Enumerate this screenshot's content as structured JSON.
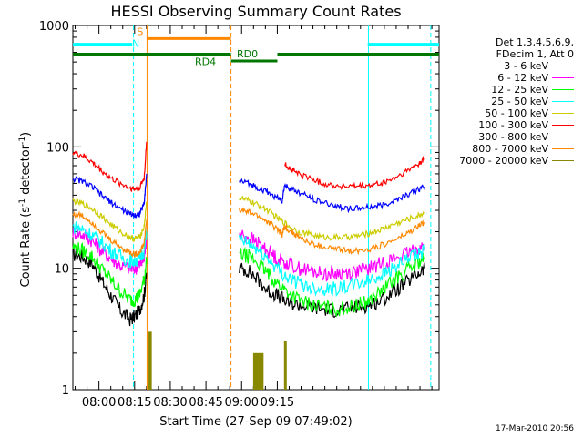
{
  "chart_data": {
    "type": "line",
    "title": "HESSI Observing Summary Count Rates",
    "xlabel": "Start Time (27-Sep-09 07:49:02)",
    "ylabel_main": "Count Rate (s",
    "ylabel_sup1": "-1",
    "ylabel_mid": " detector",
    "ylabel_sup2": "-1",
    "ylabel_end": ")",
    "x_unit": "minutes after 07:49:02",
    "xlim": [
      0,
      154
    ],
    "ylim": [
      1,
      1000
    ],
    "yscale": "log",
    "x_ticks": [
      {
        "at": 10.97,
        "label": "08:00"
      },
      {
        "at": 25.97,
        "label": "08:15"
      },
      {
        "at": 40.97,
        "label": "08:30"
      },
      {
        "at": 55.97,
        "label": "08:45"
      },
      {
        "at": 70.97,
        "label": "09:00"
      },
      {
        "at": 85.97,
        "label": "09:15"
      }
    ],
    "y_ticks": [
      {
        "at": 1,
        "label": "1"
      },
      {
        "at": 10,
        "label": "10"
      },
      {
        "at": 100,
        "label": "100"
      },
      {
        "at": 1000,
        "label": "1000"
      }
    ],
    "legend_placement": "right",
    "legend_header": [
      "Det 1,3,4,5,6,9,",
      "FDecim 1, Att 0"
    ],
    "series": [
      {
        "name": "3 - 6 keV",
        "color": "#000000",
        "segment1": {
          "x": [
            0,
            4,
            8,
            12,
            16,
            20,
            24,
            26,
            28,
            30,
            31
          ],
          "y": [
            13,
            12.5,
            11,
            8,
            6,
            4.5,
            3.8,
            4,
            4.5,
            6,
            9
          ]
        },
        "segment2": {
          "x": [
            70,
            74,
            78,
            82,
            86,
            90,
            95,
            100,
            105,
            110,
            115,
            120,
            125,
            130,
            135,
            140,
            145,
            148
          ],
          "y": [
            10,
            9.5,
            8,
            6.5,
            6,
            5.2,
            5,
            4.8,
            4.6,
            4.5,
            4.6,
            4.8,
            5,
            5.5,
            6.5,
            7.5,
            9,
            10
          ]
        }
      },
      {
        "name": "6 - 12 keV",
        "color": "#ff00ff",
        "segment1": {
          "x": [
            0,
            4,
            8,
            12,
            16,
            20,
            24,
            26,
            28,
            30,
            31
          ],
          "y": [
            20,
            19,
            17,
            14,
            12,
            10.5,
            10,
            10,
            10.5,
            12,
            18
          ]
        },
        "segment2": {
          "x": [
            70,
            74,
            78,
            82,
            86,
            90,
            95,
            100,
            105,
            110,
            115,
            120,
            125,
            130,
            135,
            140,
            145,
            148
          ],
          "y": [
            19,
            18,
            16,
            14,
            12,
            11,
            10,
            9.5,
            9,
            9,
            9.2,
            9.5,
            10,
            11,
            12,
            13,
            14.5,
            15
          ]
        }
      },
      {
        "name": "12 - 25 keV",
        "color": "#00ff00",
        "segment1": {
          "x": [
            0,
            4,
            8,
            12,
            16,
            20,
            24,
            26,
            28,
            30,
            31
          ],
          "y": [
            15,
            14,
            12.5,
            10,
            8,
            6.5,
            5.5,
            5.5,
            6,
            8,
            12
          ]
        },
        "segment2": {
          "x": [
            70,
            74,
            78,
            82,
            86,
            90,
            95,
            100,
            105,
            110,
            115,
            120,
            125,
            130,
            135,
            140,
            145,
            148
          ],
          "y": [
            13,
            12.5,
            11,
            9,
            7.5,
            6.5,
            5.5,
            5,
            4.8,
            4.6,
            4.7,
            5,
            5.5,
            6.5,
            8,
            9.5,
            11,
            12
          ]
        }
      },
      {
        "name": "25 - 50 keV",
        "color": "#00ffff",
        "segment1": {
          "x": [
            0,
            4,
            8,
            12,
            16,
            20,
            24,
            26,
            28,
            30,
            31
          ],
          "y": [
            22,
            21,
            19,
            16.5,
            14,
            12.5,
            11.5,
            11.5,
            12,
            14,
            20
          ]
        },
        "segment2": {
          "x": [
            70,
            74,
            78,
            82,
            86,
            90,
            95,
            100,
            105,
            110,
            115,
            120,
            125,
            130,
            135,
            140,
            145,
            148
          ],
          "y": [
            17,
            16,
            14,
            12,
            10,
            8.5,
            7.5,
            7,
            6.8,
            6.8,
            7,
            7.5,
            8,
            9,
            10,
            11.5,
            13,
            14
          ]
        }
      },
      {
        "name": "50 - 100 keV",
        "color": "#cccc00",
        "segment1": {
          "x": [
            0,
            4,
            8,
            12,
            16,
            20,
            24,
            26,
            28,
            30,
            31
          ],
          "y": [
            36,
            34,
            31,
            27,
            23,
            20,
            18,
            17.5,
            18,
            22,
            35
          ]
        },
        "segment2": {
          "x": [
            70,
            74,
            78,
            82,
            86,
            90,
            95,
            100,
            105,
            110,
            115,
            120,
            125,
            130,
            135,
            140,
            145,
            148
          ],
          "y": [
            38,
            36,
            33,
            30,
            26,
            23,
            20,
            19,
            18,
            18,
            18,
            18.5,
            19.5,
            21,
            23,
            25,
            27,
            29
          ]
        }
      },
      {
        "name": "100 - 300 keV",
        "color": "#ff0000",
        "segment1": {
          "x": [
            0,
            4,
            8,
            12,
            16,
            20,
            24,
            26,
            28,
            30,
            31
          ],
          "y": [
            90,
            85,
            75,
            64,
            55,
            50,
            46,
            45,
            46,
            55,
            110
          ]
        },
        "segment2": {
          "x": [
            89,
            92,
            95,
            100,
            105,
            110,
            115,
            120,
            125,
            130,
            135,
            140,
            145,
            148
          ],
          "y": [
            72,
            65,
            60,
            55,
            50,
            48,
            47,
            47,
            48,
            50,
            55,
            62,
            72,
            80
          ]
        }
      },
      {
        "name": "300 - 800 keV",
        "color": "#0000ff",
        "segment1": {
          "x": [
            0,
            4,
            8,
            12,
            16,
            20,
            24,
            26,
            28,
            30,
            31
          ],
          "y": [
            55,
            52,
            47,
            40,
            35,
            31,
            28,
            27.5,
            28,
            34,
            60
          ]
        },
        "segment2": {
          "x": [
            70,
            74,
            78,
            82,
            86,
            88,
            89,
            92,
            95,
            100,
            105,
            110,
            115,
            120,
            125,
            130,
            135,
            140,
            145,
            148
          ],
          "y": [
            52,
            50,
            46,
            42,
            38,
            36,
            48,
            45,
            42,
            38,
            35,
            33,
            31,
            31,
            32,
            33,
            36,
            40,
            44,
            47
          ]
        }
      },
      {
        "name": "800 - 7000 keV",
        "color": "#ff8800",
        "segment1": {
          "x": [
            0,
            4,
            8,
            12,
            16,
            20,
            24,
            26,
            28,
            30,
            31
          ],
          "y": [
            28,
            27,
            24,
            20,
            17,
            15,
            13.5,
            13,
            13.5,
            16,
            25
          ]
        },
        "segment2": {
          "x": [
            70,
            74,
            78,
            82,
            86,
            88,
            89,
            92,
            95,
            100,
            105,
            110,
            115,
            120,
            125,
            130,
            135,
            140,
            145,
            148
          ],
          "y": [
            30,
            29,
            27,
            24,
            21,
            19,
            22,
            20,
            18,
            16,
            15,
            14.5,
            14,
            14,
            14.5,
            15.5,
            17,
            19,
            22,
            24
          ]
        }
      },
      {
        "name": "7000 - 20000 keV",
        "color": "#888800",
        "bursts": [
          {
            "x": [
              32,
              33
            ],
            "y": [
              3,
              1.2
            ]
          },
          {
            "x": [
              76,
              80
            ],
            "y": [
              2,
              1.5
            ]
          },
          {
            "x": [
              89,
              89.8
            ],
            "y": [
              2.5,
              1.2
            ]
          }
        ]
      }
    ],
    "state_bars": [
      {
        "label": "",
        "color": "#00ffff",
        "x": [
          0,
          25
        ],
        "y": 700
      },
      {
        "label": "N",
        "color": "#00ffff",
        "x": [
          26.5,
          26.5
        ],
        "y": 700
      },
      {
        "label": "S",
        "color": "#ff8800",
        "x": [
          31,
          66.5
        ],
        "y": 780
      },
      {
        "label": "RD4",
        "color": "#007700",
        "x": [
          0,
          66.5
        ],
        "y": 580
      },
      {
        "label": "RD0",
        "color": "#007700",
        "x": [
          66.5,
          86
        ],
        "y": 510
      },
      {
        "label": "",
        "color": "#007700",
        "x": [
          86,
          154
        ],
        "y": 580
      },
      {
        "label": "",
        "color": "#00ffff",
        "x": [
          124,
          154
        ],
        "y": 700
      }
    ],
    "vertical_markers": [
      {
        "x": 25.5,
        "color": "#00ffff",
        "style": "dashed"
      },
      {
        "x": 31.2,
        "color": "#ff8800",
        "style": "solid"
      },
      {
        "x": 66.5,
        "color": "#ff8800",
        "style": "dashed"
      },
      {
        "x": 124.3,
        "color": "#00ffff",
        "style": "solid"
      },
      {
        "x": 150.5,
        "color": "#00ffff",
        "style": "dashed"
      }
    ]
  },
  "footer_timestamp": "17-Mar-2010 20:56"
}
